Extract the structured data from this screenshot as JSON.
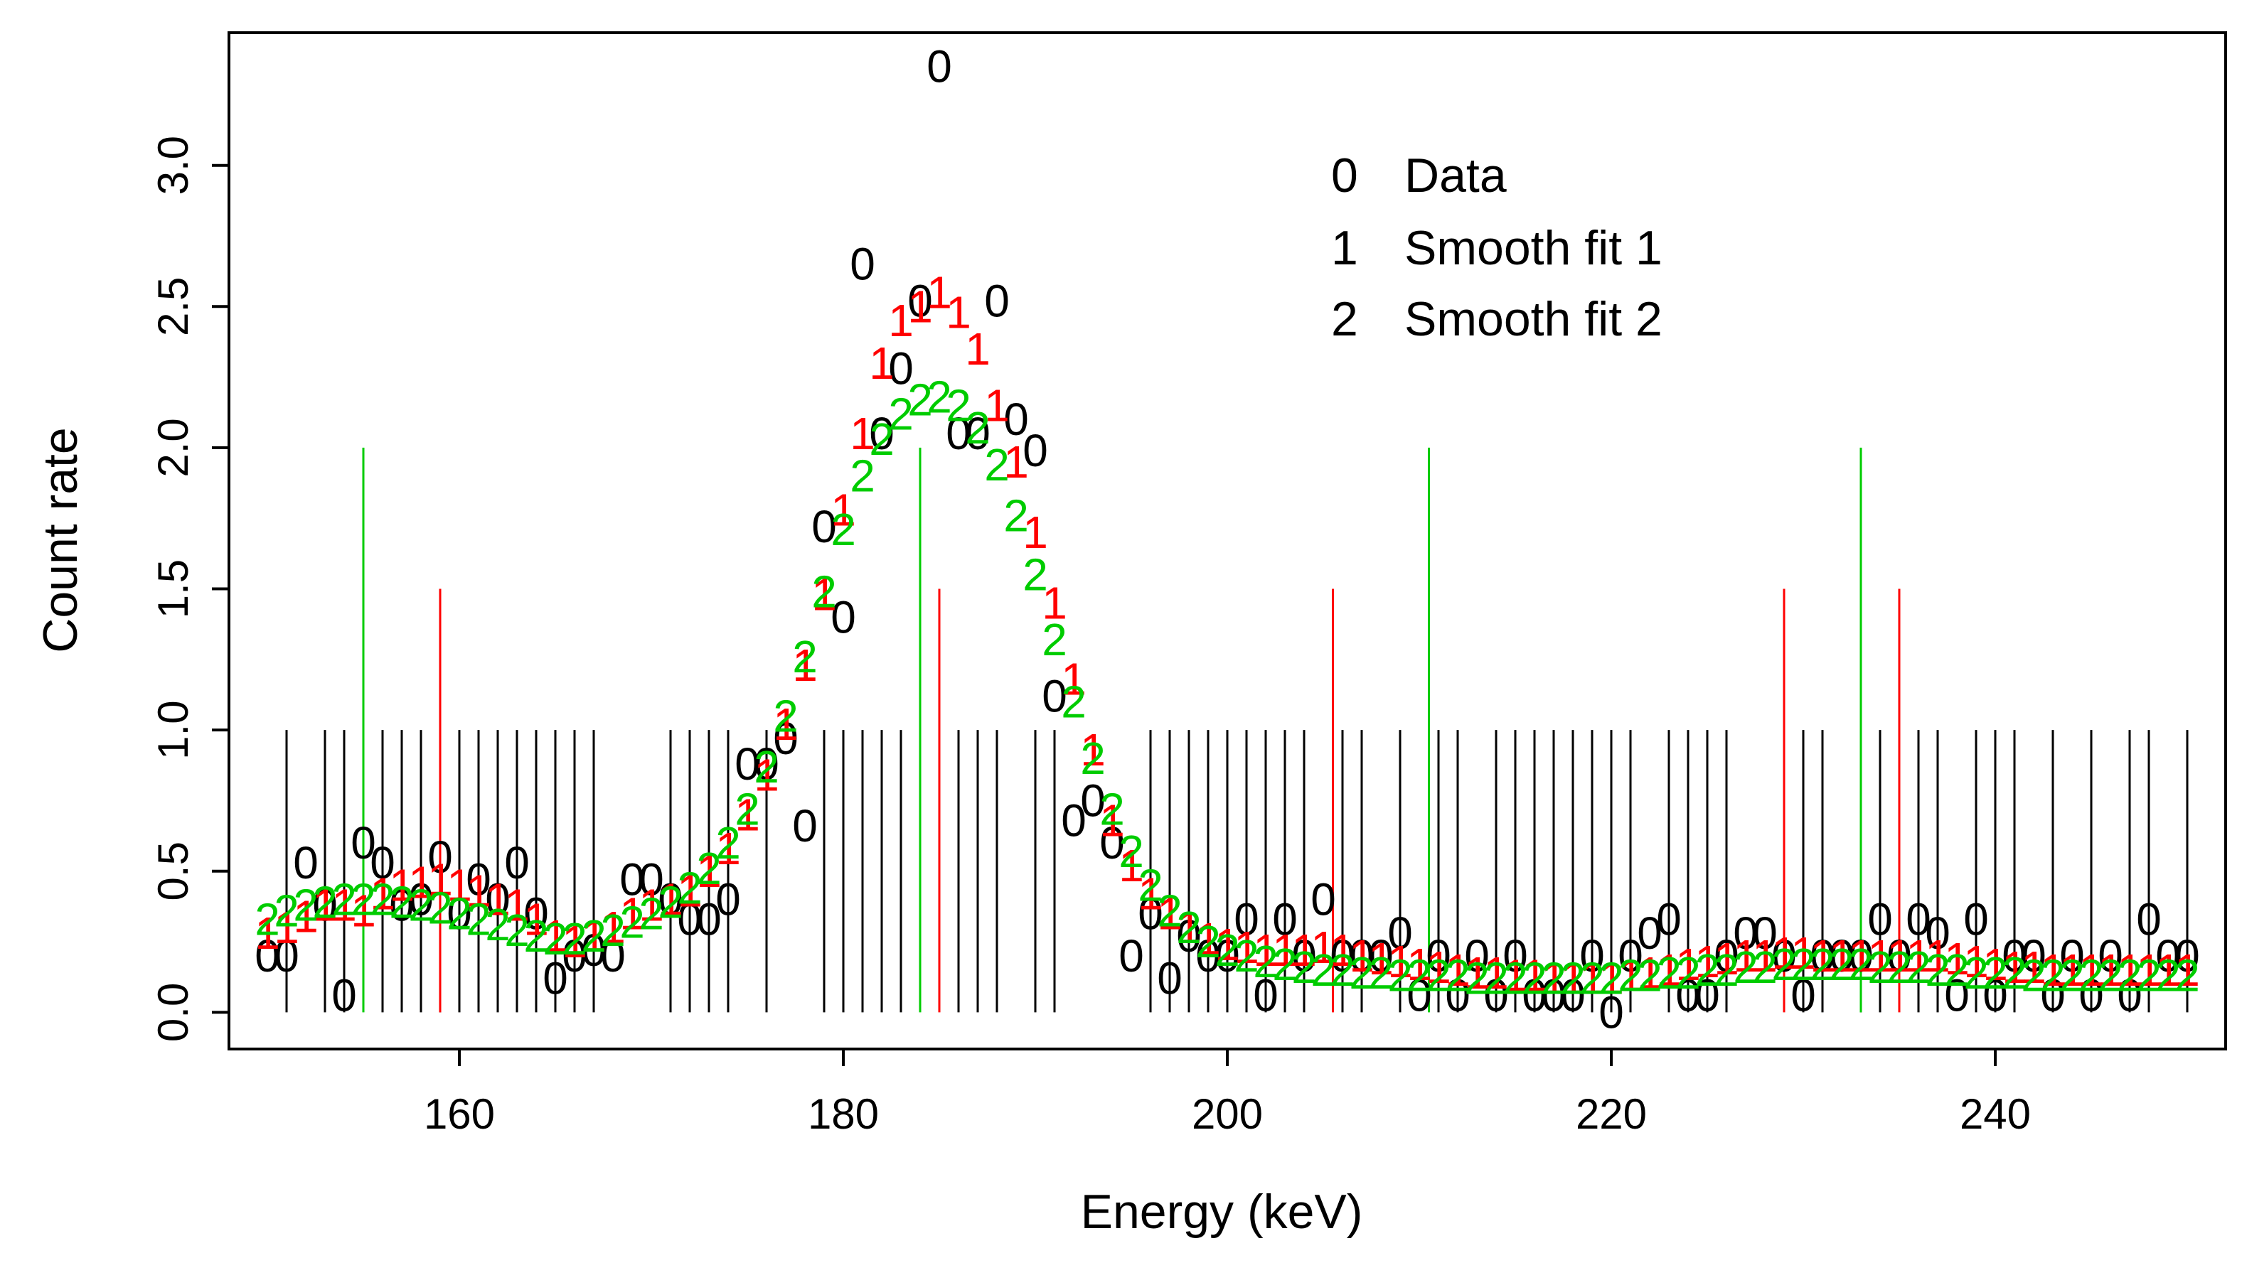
{
  "chart_data": {
    "type": "scatter",
    "title": "",
    "xlabel": "Energy (keV)",
    "ylabel": "Count rate",
    "xlim": [
      148,
      252
    ],
    "ylim": [
      -0.13,
      3.47
    ],
    "x_ticks": [
      160,
      180,
      200,
      220,
      240
    ],
    "y_ticks": [
      0.0,
      0.5,
      1.0,
      1.5,
      2.0,
      2.5,
      3.0
    ],
    "x_tick_labels": [
      "160",
      "180",
      "200",
      "220",
      "240"
    ],
    "y_tick_labels": [
      "0.0",
      "0.5",
      "1.0",
      "1.5",
      "2.0",
      "2.5",
      "3.0"
    ],
    "grid": false,
    "legend_position": "top-right",
    "legend": [
      {
        "symbol": "0",
        "label": "Data",
        "color": "#000000"
      },
      {
        "symbol": "1",
        "label": "Smooth fit 1",
        "color": "#ff0000"
      },
      {
        "symbol": "2",
        "label": "Smooth fit 2",
        "color": "#00cc00"
      }
    ],
    "series": [
      {
        "name": "Data",
        "symbol": "0",
        "color": "#000000",
        "x": [
          150,
          151,
          152,
          153,
          154,
          155,
          156,
          157,
          158,
          159,
          160,
          161,
          162,
          163,
          164,
          165,
          166,
          167,
          168,
          169,
          170,
          171,
          172,
          173,
          174,
          175,
          176,
          177,
          178,
          179,
          180,
          181,
          182,
          183,
          184,
          185,
          186,
          187,
          188,
          189,
          190,
          191,
          192,
          193,
          194,
          195,
          196,
          197,
          198,
          199,
          200,
          201,
          202,
          203,
          204,
          205,
          206,
          207,
          208,
          209,
          210,
          211,
          212,
          213,
          214,
          215,
          216,
          217,
          218,
          219,
          220,
          221,
          222,
          223,
          224,
          225,
          226,
          227,
          228,
          229,
          230,
          231,
          232,
          233,
          234,
          235,
          236,
          237,
          238,
          239,
          240,
          241,
          242,
          243,
          244,
          245,
          246,
          247,
          248,
          249,
          250
        ],
        "y": [
          0.2,
          0.2,
          0.53,
          0.38,
          0.06,
          0.6,
          0.53,
          0.38,
          0.4,
          0.55,
          0.35,
          0.47,
          0.4,
          0.53,
          0.35,
          0.12,
          0.2,
          0.22,
          0.2,
          0.47,
          0.47,
          0.4,
          0.33,
          0.33,
          0.4,
          0.88,
          0.88,
          0.97,
          0.66,
          1.72,
          1.4,
          2.65,
          2.05,
          2.28,
          2.52,
          3.35,
          2.05,
          2.05,
          2.52,
          2.1,
          1.99,
          1.12,
          0.68,
          0.75,
          0.6,
          0.2,
          0.35,
          0.12,
          0.27,
          0.2,
          0.2,
          0.33,
          0.06,
          0.33,
          0.2,
          0.4,
          0.2,
          0.2,
          0.2,
          0.28,
          0.06,
          0.2,
          0.06,
          0.2,
          0.06,
          0.2,
          0.06,
          0.06,
          0.06,
          0.2,
          0.0,
          0.2,
          0.28,
          0.33,
          0.06,
          0.06,
          0.2,
          0.28,
          0.28,
          0.2,
          0.06,
          0.2,
          0.2,
          0.2,
          0.33,
          0.2,
          0.33,
          0.28,
          0.06,
          0.33,
          0.06,
          0.2,
          0.2,
          0.06,
          0.2,
          0.06,
          0.2,
          0.06,
          0.33,
          0.2,
          0.2
        ]
      },
      {
        "name": "Smooth fit 1",
        "symbol": "1",
        "color": "#ff0000",
        "x": [
          150,
          151,
          152,
          153,
          154,
          155,
          156,
          157,
          158,
          159,
          160,
          161,
          162,
          163,
          164,
          165,
          166,
          167,
          168,
          169,
          170,
          171,
          172,
          173,
          174,
          175,
          176,
          177,
          178,
          179,
          180,
          181,
          182,
          183,
          184,
          185,
          186,
          187,
          188,
          189,
          190,
          191,
          192,
          193,
          194,
          195,
          196,
          197,
          198,
          199,
          200,
          201,
          202,
          203,
          204,
          205,
          206,
          207,
          208,
          209,
          210,
          211,
          212,
          213,
          214,
          215,
          216,
          217,
          218,
          219,
          220,
          221,
          222,
          223,
          224,
          225,
          226,
          227,
          228,
          229,
          230,
          231,
          232,
          233,
          234,
          235,
          236,
          237,
          238,
          239,
          240,
          241,
          242,
          243,
          244,
          245,
          246,
          247,
          248,
          249,
          250
        ],
        "y": [
          0.28,
          0.3,
          0.34,
          0.38,
          0.38,
          0.36,
          0.42,
          0.45,
          0.46,
          0.47,
          0.45,
          0.43,
          0.4,
          0.38,
          0.33,
          0.27,
          0.25,
          0.27,
          0.3,
          0.35,
          0.38,
          0.4,
          0.43,
          0.5,
          0.58,
          0.7,
          0.84,
          1.02,
          1.23,
          1.48,
          1.78,
          2.05,
          2.3,
          2.45,
          2.5,
          2.55,
          2.48,
          2.35,
          2.15,
          1.95,
          1.7,
          1.45,
          1.18,
          0.93,
          0.68,
          0.52,
          0.42,
          0.35,
          0.3,
          0.26,
          0.24,
          0.23,
          0.22,
          0.22,
          0.22,
          0.23,
          0.22,
          0.2,
          0.19,
          0.18,
          0.17,
          0.16,
          0.15,
          0.14,
          0.14,
          0.13,
          0.13,
          0.12,
          0.12,
          0.12,
          0.12,
          0.13,
          0.14,
          0.15,
          0.17,
          0.18,
          0.19,
          0.2,
          0.2,
          0.21,
          0.21,
          0.2,
          0.2,
          0.2,
          0.2,
          0.2,
          0.2,
          0.2,
          0.19,
          0.18,
          0.17,
          0.16,
          0.16,
          0.15,
          0.15,
          0.15,
          0.15,
          0.15,
          0.15,
          0.15,
          0.15
        ]
      },
      {
        "name": "Smooth fit 2",
        "symbol": "2",
        "color": "#00cc00",
        "x": [
          150,
          151,
          152,
          153,
          154,
          155,
          156,
          157,
          158,
          159,
          160,
          161,
          162,
          163,
          164,
          165,
          166,
          167,
          168,
          169,
          170,
          171,
          172,
          173,
          174,
          175,
          176,
          177,
          178,
          179,
          180,
          181,
          182,
          183,
          184,
          185,
          186,
          187,
          188,
          189,
          190,
          191,
          192,
          193,
          194,
          195,
          196,
          197,
          198,
          199,
          200,
          201,
          202,
          203,
          204,
          205,
          206,
          207,
          208,
          209,
          210,
          211,
          212,
          213,
          214,
          215,
          216,
          217,
          218,
          219,
          220,
          221,
          222,
          223,
          224,
          225,
          226,
          227,
          228,
          229,
          230,
          231,
          232,
          233,
          234,
          235,
          236,
          237,
          238,
          239,
          240,
          241,
          242,
          243,
          244,
          245,
          246,
          247,
          248,
          249,
          250
        ],
        "y": [
          0.33,
          0.36,
          0.38,
          0.39,
          0.4,
          0.4,
          0.4,
          0.39,
          0.38,
          0.37,
          0.35,
          0.33,
          0.31,
          0.29,
          0.27,
          0.26,
          0.26,
          0.27,
          0.29,
          0.32,
          0.35,
          0.39,
          0.44,
          0.51,
          0.6,
          0.72,
          0.87,
          1.05,
          1.26,
          1.49,
          1.71,
          1.9,
          2.03,
          2.12,
          2.17,
          2.18,
          2.15,
          2.07,
          1.94,
          1.76,
          1.55,
          1.32,
          1.1,
          0.9,
          0.72,
          0.57,
          0.45,
          0.36,
          0.3,
          0.25,
          0.22,
          0.2,
          0.18,
          0.17,
          0.16,
          0.15,
          0.15,
          0.14,
          0.14,
          0.13,
          0.13,
          0.13,
          0.13,
          0.12,
          0.12,
          0.12,
          0.12,
          0.12,
          0.12,
          0.12,
          0.12,
          0.13,
          0.13,
          0.14,
          0.14,
          0.15,
          0.15,
          0.16,
          0.16,
          0.17,
          0.17,
          0.17,
          0.17,
          0.17,
          0.16,
          0.16,
          0.16,
          0.15,
          0.15,
          0.14,
          0.14,
          0.14,
          0.13,
          0.13,
          0.13,
          0.13,
          0.13,
          0.13,
          0.13,
          0.13,
          0.13
        ]
      }
    ],
    "vertical_lines": [
      {
        "name": "black",
        "color": "#000000",
        "height": 1.0,
        "x": [
          151,
          153,
          154,
          156,
          157,
          158,
          159,
          160,
          161,
          162,
          163,
          164,
          165,
          166,
          167,
          171,
          172,
          173,
          174,
          176,
          179,
          180,
          181,
          182,
          183,
          186,
          187,
          188,
          190,
          191,
          196,
          197,
          198,
          199,
          200,
          201,
          202,
          203,
          204,
          206,
          207,
          209,
          211,
          212,
          214,
          215,
          216,
          217,
          218,
          219,
          220,
          221,
          223,
          224,
          225,
          226,
          230,
          231,
          233,
          234,
          236,
          237,
          239,
          240,
          241,
          243,
          245,
          247,
          248,
          250
        ]
      },
      {
        "name": "red",
        "color": "#ff0000",
        "height": 1.5,
        "x": [
          159,
          185,
          205.5,
          229,
          235
        ]
      },
      {
        "name": "green",
        "color": "#00cc00",
        "height": 2.0,
        "x": [
          155,
          184,
          210.5,
          233
        ]
      }
    ]
  }
}
